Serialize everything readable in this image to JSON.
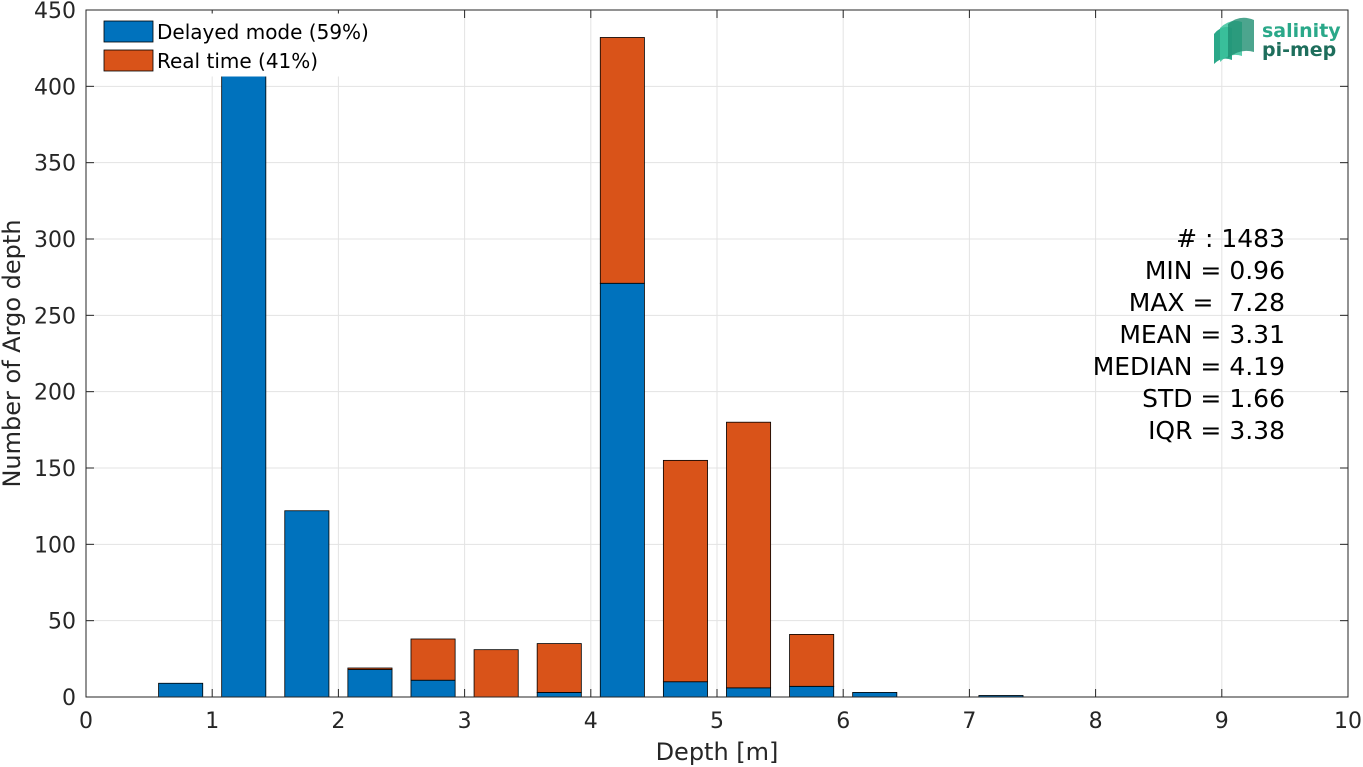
{
  "chart_data": {
    "type": "bar",
    "stacked": true,
    "x": [
      0.75,
      1.25,
      1.75,
      2.25,
      2.75,
      3.25,
      3.75,
      4.25,
      4.75,
      5.25,
      5.75,
      6.25,
      6.75,
      7.25
    ],
    "bin_width": 0.5,
    "series": [
      {
        "name": "Delayed mode (59%)",
        "color": "#0072BD",
        "values": [
          9,
          416,
          122,
          18,
          11,
          0,
          3,
          271,
          10,
          6,
          7,
          3,
          0,
          1
        ]
      },
      {
        "name": "Real time (41%)",
        "color": "#D95319",
        "values": [
          0,
          0,
          0,
          1,
          27,
          31,
          32,
          161,
          145,
          174,
          34,
          0,
          0,
          0
        ]
      }
    ],
    "xlabel": "Depth [m]",
    "ylabel": "Number of Argo depth",
    "xlim": [
      0,
      10
    ],
    "ylim": [
      0,
      450
    ],
    "xticks": [
      "0",
      "1",
      "2",
      "3",
      "4",
      "5",
      "6",
      "7",
      "8",
      "9",
      "10"
    ],
    "yticks": [
      "0",
      "50",
      "100",
      "150",
      "200",
      "250",
      "300",
      "350",
      "400",
      "450"
    ],
    "grid": true,
    "legend_position": "top-left",
    "stats": [
      "# : 1483",
      "MIN = 0.96",
      "MAX =  7.28",
      "MEAN = 3.31",
      "MEDIAN = 4.19",
      "STD = 1.66",
      "IQR = 3.38"
    ]
  },
  "logo": {
    "line1": "salinity",
    "line2": "pi-mep",
    "color1": "#2aa889",
    "color2": "#1e6e5c"
  }
}
